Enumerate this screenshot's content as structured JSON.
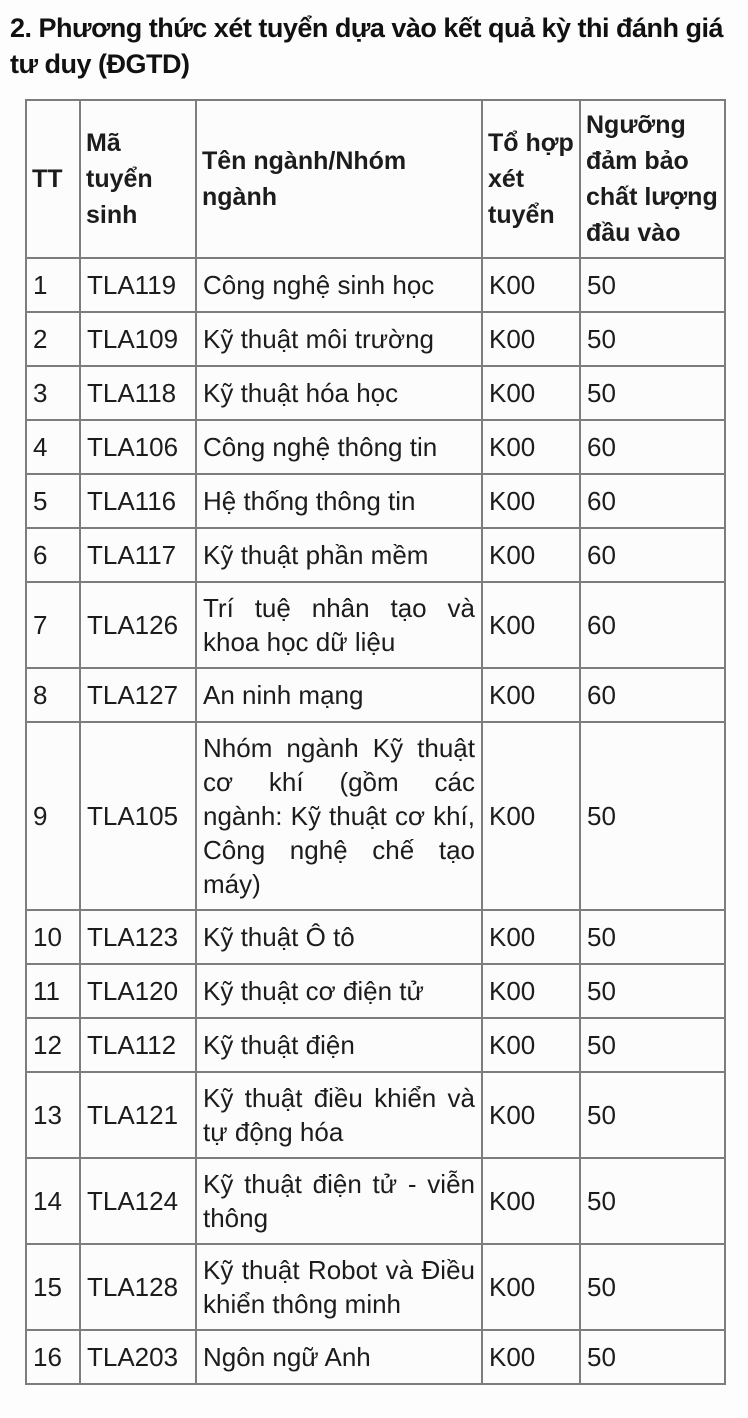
{
  "page": {
    "heading": "2. Phương thức xét tuyển dựa vào kết quả kỳ thi đánh giá tư duy (ĐGTD)"
  },
  "colors": {
    "text": "#1c1c1c",
    "table_border": "#7d7d7d",
    "background": "#fdfdfd"
  },
  "table": {
    "headers": [
      "TT",
      "Mã tuyển sinh",
      "Tên ngành/Nhóm ngành",
      "Tổ hợp xét tuyển",
      "Ngưỡng đảm bảo chất lượng đầu vào"
    ],
    "rows": [
      {
        "tt": "1",
        "code": "TLA119",
        "name": "Công nghệ sinh học",
        "combo": "K00",
        "threshold": "50"
      },
      {
        "tt": "2",
        "code": "TLA109",
        "name": "Kỹ thuật môi trường",
        "combo": "K00",
        "threshold": "50"
      },
      {
        "tt": "3",
        "code": "TLA118",
        "name": "Kỹ thuật hóa học",
        "combo": "K00",
        "threshold": "50"
      },
      {
        "tt": "4",
        "code": "TLA106",
        "name": "Công nghệ thông tin",
        "combo": "K00",
        "threshold": "60"
      },
      {
        "tt": "5",
        "code": "TLA116",
        "name": "Hệ thống thông tin",
        "combo": "K00",
        "threshold": "60"
      },
      {
        "tt": "6",
        "code": "TLA117",
        "name": "Kỹ thuật phần mềm",
        "combo": "K00",
        "threshold": "60"
      },
      {
        "tt": "7",
        "code": "TLA126",
        "name": "Trí tuệ nhân tạo và khoa học dữ liệu",
        "combo": "K00",
        "threshold": "60"
      },
      {
        "tt": "8",
        "code": "TLA127",
        "name": "An ninh mạng",
        "combo": "K00",
        "threshold": "60"
      },
      {
        "tt": "9",
        "code": "TLA105",
        "name": "Nhóm ngành Kỹ thuật cơ khí (gồm các ngành: Kỹ thuật cơ khí, Công nghệ chế tạo máy)",
        "combo": "K00",
        "threshold": "50"
      },
      {
        "tt": "10",
        "code": "TLA123",
        "name": "Kỹ thuật Ô tô",
        "combo": "K00",
        "threshold": "50"
      },
      {
        "tt": "11",
        "code": "TLA120",
        "name": "Kỹ thuật cơ điện tử",
        "combo": "K00",
        "threshold": "50"
      },
      {
        "tt": "12",
        "code": "TLA112",
        "name": "Kỹ thuật điện",
        "combo": "K00",
        "threshold": "50"
      },
      {
        "tt": "13",
        "code": "TLA121",
        "name": "Kỹ thuật điều khiển và tự động hóa",
        "combo": "K00",
        "threshold": "50"
      },
      {
        "tt": "14",
        "code": "TLA124",
        "name": "Kỹ thuật điện tử - viễn thông",
        "combo": "K00",
        "threshold": "50"
      },
      {
        "tt": "15",
        "code": "TLA128",
        "name": "Kỹ thuật Robot và Điều khiển thông minh",
        "combo": "K00",
        "threshold": "50"
      },
      {
        "tt": "16",
        "code": "TLA203",
        "name": "Ngôn ngữ Anh",
        "combo": "K00",
        "threshold": "50"
      }
    ]
  }
}
